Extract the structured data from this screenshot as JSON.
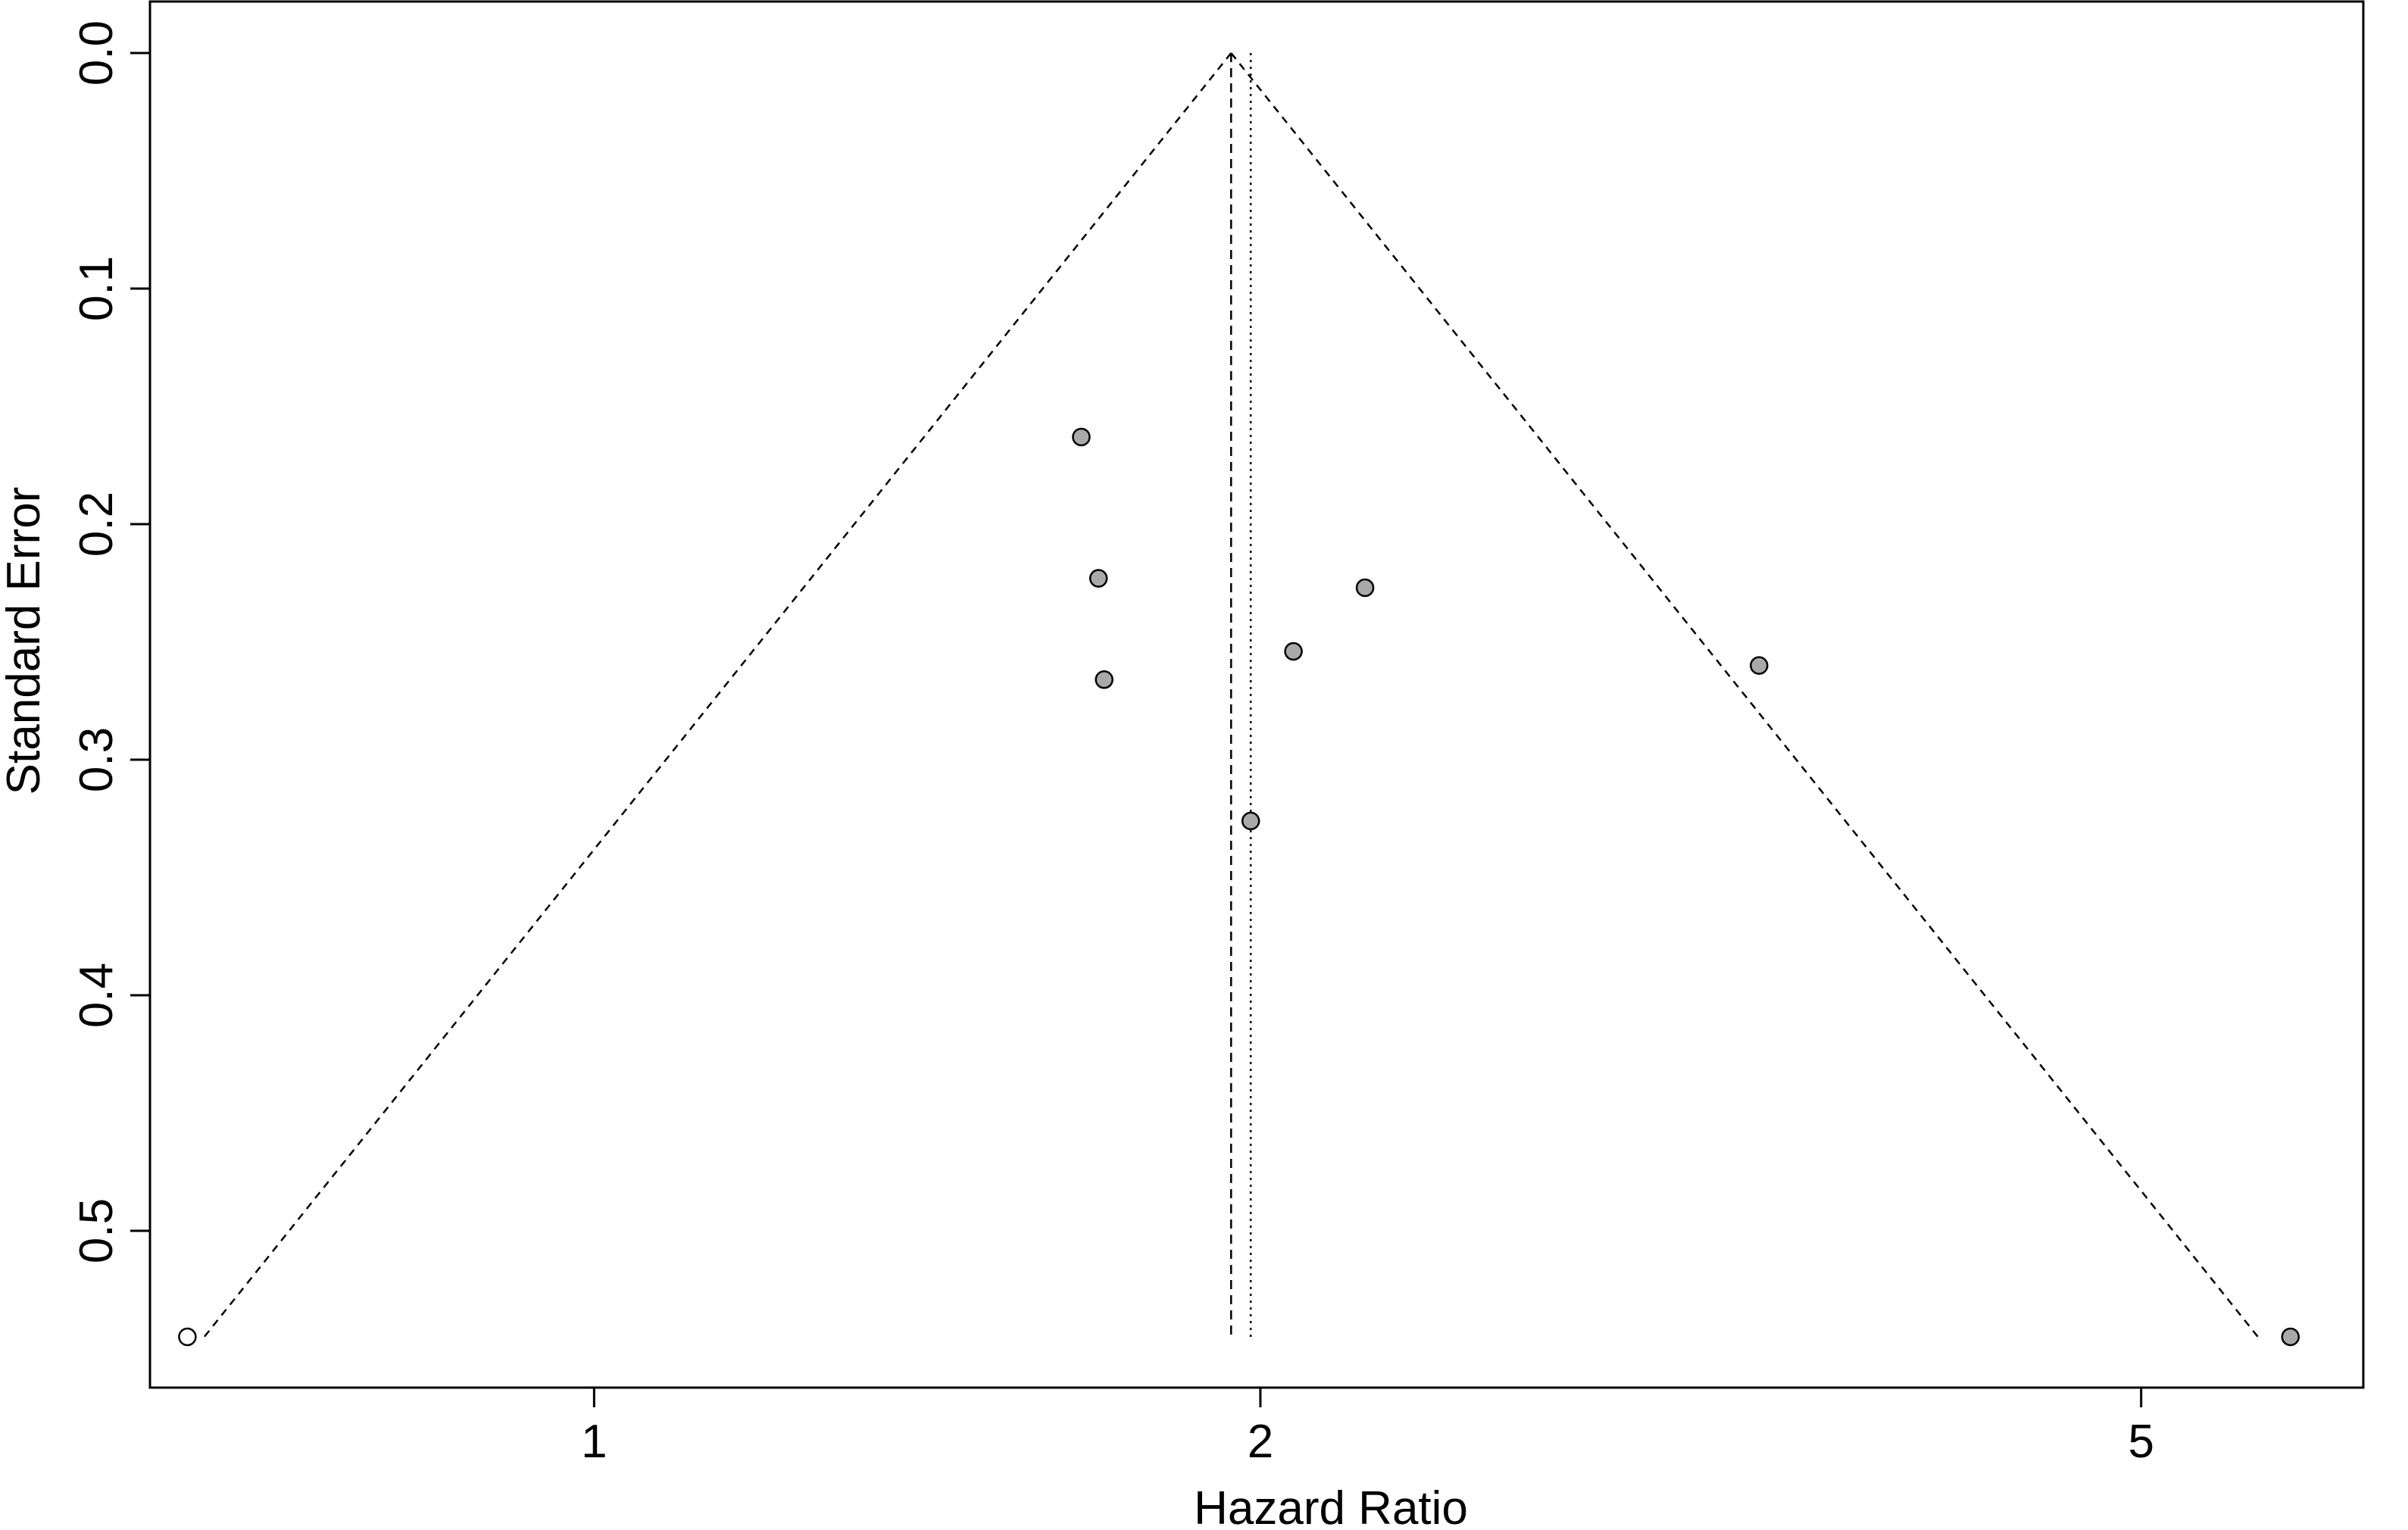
{
  "chart_data": {
    "type": "scatter",
    "title": "",
    "xlabel": "Hazard Ratio",
    "ylabel": "Standard Error",
    "x_scale": "log",
    "xlim": [
      0.63,
      6.3
    ],
    "ylim": [
      0.0,
      0.566
    ],
    "y_reversed": true,
    "x_ticks": [
      1,
      2,
      5
    ],
    "x_tick_labels": [
      "1",
      "2",
      "5"
    ],
    "y_ticks": [
      0.0,
      0.1,
      0.2,
      0.3,
      0.4,
      0.5
    ],
    "y_tick_labels": [
      "0.0",
      "0.1",
      "0.2",
      "0.3",
      "0.4",
      "0.5"
    ],
    "grid": false,
    "legend": "none",
    "funnel": {
      "center": 1.94,
      "se_max": 0.545,
      "z": 1.96
    },
    "reference_lines": [
      {
        "x": 1.94,
        "style": "dashed"
      },
      {
        "x": 1.98,
        "style": "dotted"
      }
    ],
    "points": [
      {
        "x": 1.66,
        "y": 0.163,
        "fill": "#a9a9a9"
      },
      {
        "x": 1.69,
        "y": 0.223,
        "fill": "#a9a9a9"
      },
      {
        "x": 1.7,
        "y": 0.266,
        "fill": "#a9a9a9"
      },
      {
        "x": 1.98,
        "y": 0.326,
        "fill": "#a9a9a9"
      },
      {
        "x": 2.07,
        "y": 0.254,
        "fill": "#a9a9a9"
      },
      {
        "x": 2.23,
        "y": 0.227,
        "fill": "#a9a9a9"
      },
      {
        "x": 3.36,
        "y": 0.26,
        "fill": "#a9a9a9"
      },
      {
        "x": 5.84,
        "y": 0.545,
        "fill": "#a9a9a9"
      },
      {
        "x": 0.655,
        "y": 0.545,
        "fill": "#ffffff"
      }
    ]
  }
}
